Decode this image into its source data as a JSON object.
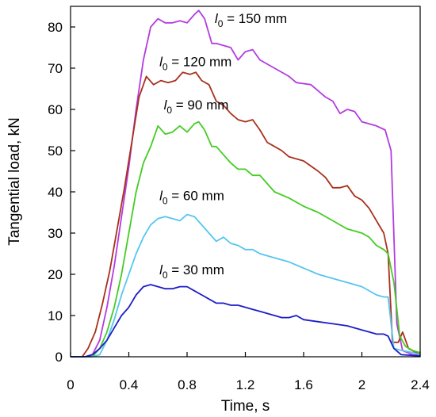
{
  "chart_data": {
    "type": "line",
    "xlabel": "Time, s",
    "ylabel": "Tangential load, kN",
    "xlim": [
      0,
      2.4
    ],
    "ylim": [
      0,
      85
    ],
    "xticks": [
      0,
      0.4,
      0.8,
      1.2,
      1.6,
      2,
      2.4
    ],
    "yticks": [
      0,
      10,
      20,
      30,
      40,
      50,
      60,
      70,
      80
    ],
    "xtick_labels": [
      "0",
      "0.4",
      "0.8",
      "1.2",
      "1.6",
      "2",
      "2.4"
    ],
    "ytick_labels": [
      "0",
      "10",
      "20",
      "30",
      "40",
      "50",
      "60",
      "70",
      "80"
    ],
    "grid": false,
    "series": [
      {
        "name_var": "l",
        "name_sub": "0",
        "name_rest": " = 150 mm",
        "label_pos": [
          0.99,
          81
        ],
        "color": "#b33be0",
        "points": [
          [
            0,
            0
          ],
          [
            0.1,
            0
          ],
          [
            0.15,
            0.5
          ],
          [
            0.2,
            4
          ],
          [
            0.25,
            12
          ],
          [
            0.3,
            22
          ],
          [
            0.35,
            34
          ],
          [
            0.4,
            46
          ],
          [
            0.45,
            60
          ],
          [
            0.5,
            72
          ],
          [
            0.55,
            80
          ],
          [
            0.6,
            82
          ],
          [
            0.65,
            81
          ],
          [
            0.7,
            81
          ],
          [
            0.75,
            81.5
          ],
          [
            0.8,
            81
          ],
          [
            0.85,
            83
          ],
          [
            0.88,
            84
          ],
          [
            0.92,
            82
          ],
          [
            0.97,
            76
          ],
          [
            1.0,
            76
          ],
          [
            1.05,
            75.5
          ],
          [
            1.1,
            75
          ],
          [
            1.15,
            72
          ],
          [
            1.2,
            74
          ],
          [
            1.25,
            74.5
          ],
          [
            1.3,
            72
          ],
          [
            1.4,
            70
          ],
          [
            1.5,
            68
          ],
          [
            1.55,
            66.5
          ],
          [
            1.65,
            66
          ],
          [
            1.75,
            63
          ],
          [
            1.8,
            62
          ],
          [
            1.85,
            59
          ],
          [
            1.9,
            60
          ],
          [
            1.95,
            59.5
          ],
          [
            2.0,
            57
          ],
          [
            2.1,
            56
          ],
          [
            2.16,
            55
          ],
          [
            2.2,
            50
          ],
          [
            2.24,
            8
          ],
          [
            2.28,
            1.5
          ],
          [
            2.35,
            0.5
          ],
          [
            2.4,
            0.3
          ]
        ]
      },
      {
        "name_var": "l",
        "name_sub": "0",
        "name_rest": " = 120 mm",
        "label_pos": [
          0.61,
          70.5
        ],
        "color": "#a8301c",
        "points": [
          [
            0,
            0
          ],
          [
            0.08,
            0
          ],
          [
            0.12,
            2
          ],
          [
            0.17,
            6
          ],
          [
            0.22,
            13
          ],
          [
            0.27,
            21
          ],
          [
            0.32,
            31
          ],
          [
            0.37,
            41
          ],
          [
            0.42,
            52
          ],
          [
            0.47,
            63
          ],
          [
            0.52,
            68
          ],
          [
            0.57,
            66
          ],
          [
            0.62,
            67
          ],
          [
            0.67,
            66.5
          ],
          [
            0.72,
            67
          ],
          [
            0.77,
            69
          ],
          [
            0.82,
            68.5
          ],
          [
            0.86,
            69
          ],
          [
            0.9,
            67
          ],
          [
            0.95,
            66
          ],
          [
            1.0,
            62
          ],
          [
            1.05,
            61
          ],
          [
            1.1,
            59
          ],
          [
            1.15,
            57.5
          ],
          [
            1.2,
            57
          ],
          [
            1.25,
            57.5
          ],
          [
            1.3,
            55
          ],
          [
            1.35,
            52
          ],
          [
            1.4,
            51
          ],
          [
            1.45,
            50
          ],
          [
            1.5,
            48.5
          ],
          [
            1.6,
            47.5
          ],
          [
            1.7,
            45
          ],
          [
            1.75,
            43.5
          ],
          [
            1.8,
            41
          ],
          [
            1.85,
            41
          ],
          [
            1.9,
            41.5
          ],
          [
            1.95,
            39
          ],
          [
            2.0,
            38
          ],
          [
            2.05,
            36
          ],
          [
            2.1,
            33
          ],
          [
            2.15,
            30
          ],
          [
            2.18,
            25
          ],
          [
            2.21,
            3.5
          ],
          [
            2.25,
            3.5
          ],
          [
            2.28,
            6
          ],
          [
            2.32,
            2
          ],
          [
            2.4,
            0.5
          ]
        ]
      },
      {
        "name_var": "l",
        "name_sub": "0",
        "name_rest": " = 90 mm",
        "label_pos": [
          0.64,
          60
        ],
        "color": "#44cc22",
        "points": [
          [
            0,
            0
          ],
          [
            0.15,
            0
          ],
          [
            0.2,
            2
          ],
          [
            0.25,
            6
          ],
          [
            0.3,
            12
          ],
          [
            0.35,
            20
          ],
          [
            0.4,
            30
          ],
          [
            0.45,
            40
          ],
          [
            0.5,
            47
          ],
          [
            0.55,
            51
          ],
          [
            0.6,
            56
          ],
          [
            0.65,
            54
          ],
          [
            0.7,
            54.5
          ],
          [
            0.75,
            56
          ],
          [
            0.8,
            54.5
          ],
          [
            0.85,
            56.5
          ],
          [
            0.88,
            57
          ],
          [
            0.92,
            55
          ],
          [
            0.97,
            51
          ],
          [
            1.0,
            51
          ],
          [
            1.05,
            49
          ],
          [
            1.1,
            47
          ],
          [
            1.15,
            45.5
          ],
          [
            1.2,
            45.5
          ],
          [
            1.25,
            44
          ],
          [
            1.3,
            44
          ],
          [
            1.35,
            42
          ],
          [
            1.4,
            40
          ],
          [
            1.5,
            38.5
          ],
          [
            1.6,
            36.5
          ],
          [
            1.7,
            35
          ],
          [
            1.8,
            33
          ],
          [
            1.85,
            32
          ],
          [
            1.9,
            31
          ],
          [
            2.0,
            30
          ],
          [
            2.05,
            29
          ],
          [
            2.1,
            27
          ],
          [
            2.15,
            26
          ],
          [
            2.18,
            25
          ],
          [
            2.22,
            18
          ],
          [
            2.26,
            5
          ],
          [
            2.3,
            2.5
          ],
          [
            2.35,
            1.5
          ],
          [
            2.4,
            1
          ]
        ]
      },
      {
        "name_var": "l",
        "name_sub": "0",
        "name_rest": " = 60 mm",
        "label_pos": [
          0.61,
          38
        ],
        "color": "#55c5f0",
        "points": [
          [
            0,
            0
          ],
          [
            0.15,
            0
          ],
          [
            0.2,
            0.5
          ],
          [
            0.25,
            4
          ],
          [
            0.3,
            9
          ],
          [
            0.35,
            15
          ],
          [
            0.4,
            20
          ],
          [
            0.45,
            25
          ],
          [
            0.5,
            29
          ],
          [
            0.55,
            32
          ],
          [
            0.6,
            33.5
          ],
          [
            0.65,
            34
          ],
          [
            0.7,
            33.5
          ],
          [
            0.75,
            33
          ],
          [
            0.8,
            34.5
          ],
          [
            0.85,
            34
          ],
          [
            0.9,
            32
          ],
          [
            0.95,
            30
          ],
          [
            1.0,
            28
          ],
          [
            1.05,
            29
          ],
          [
            1.1,
            27.5
          ],
          [
            1.15,
            27
          ],
          [
            1.2,
            26
          ],
          [
            1.25,
            26
          ],
          [
            1.3,
            25
          ],
          [
            1.4,
            24
          ],
          [
            1.5,
            23
          ],
          [
            1.6,
            21.5
          ],
          [
            1.7,
            20
          ],
          [
            1.8,
            19
          ],
          [
            1.9,
            18
          ],
          [
            2.0,
            17
          ],
          [
            2.1,
            15
          ],
          [
            2.15,
            14.5
          ],
          [
            2.18,
            14.5
          ],
          [
            2.22,
            2
          ],
          [
            2.28,
            1.5
          ],
          [
            2.35,
            1
          ],
          [
            2.4,
            0.5
          ]
        ]
      },
      {
        "name_var": "l",
        "name_sub": "0",
        "name_rest": " = 30 mm",
        "label_pos": [
          0.61,
          20
        ],
        "color": "#1d1dc8",
        "points": [
          [
            0,
            0
          ],
          [
            0.1,
            0
          ],
          [
            0.15,
            0.5
          ],
          [
            0.2,
            2
          ],
          [
            0.25,
            4
          ],
          [
            0.3,
            7
          ],
          [
            0.35,
            10
          ],
          [
            0.4,
            12
          ],
          [
            0.45,
            15
          ],
          [
            0.5,
            17
          ],
          [
            0.55,
            17.5
          ],
          [
            0.6,
            17
          ],
          [
            0.65,
            16.5
          ],
          [
            0.7,
            16.5
          ],
          [
            0.75,
            17
          ],
          [
            0.8,
            17
          ],
          [
            0.85,
            16
          ],
          [
            0.9,
            15
          ],
          [
            0.95,
            14
          ],
          [
            1.0,
            13
          ],
          [
            1.05,
            13
          ],
          [
            1.1,
            12.5
          ],
          [
            1.15,
            12.5
          ],
          [
            1.2,
            12
          ],
          [
            1.25,
            11.5
          ],
          [
            1.3,
            11
          ],
          [
            1.35,
            10.5
          ],
          [
            1.4,
            10
          ],
          [
            1.45,
            9.5
          ],
          [
            1.5,
            9.5
          ],
          [
            1.55,
            10
          ],
          [
            1.6,
            9
          ],
          [
            1.7,
            8.5
          ],
          [
            1.8,
            8
          ],
          [
            1.9,
            7.5
          ],
          [
            2.0,
            6.5
          ],
          [
            2.05,
            6
          ],
          [
            2.1,
            5.5
          ],
          [
            2.15,
            5.5
          ],
          [
            2.18,
            5
          ],
          [
            2.22,
            2
          ],
          [
            2.27,
            0.5
          ],
          [
            2.35,
            0.3
          ],
          [
            2.4,
            0.2
          ]
        ]
      }
    ]
  }
}
